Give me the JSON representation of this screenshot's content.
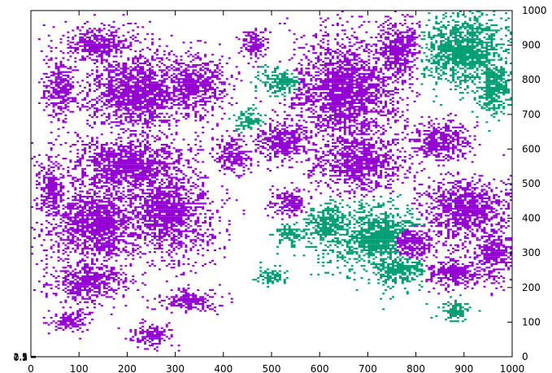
{
  "chart_data": {
    "type": "heatmap",
    "title": "",
    "xlabel": "",
    "ylabel": "",
    "xlim": [
      0,
      1000
    ],
    "ylim": [
      0,
      1000
    ],
    "x_ticks": [
      "0",
      "100",
      "200",
      "300",
      "400",
      "500",
      "600",
      "700",
      "800",
      "900",
      "1000"
    ],
    "y_ticks_right": [
      "0",
      "100",
      "200",
      "300",
      "400",
      "500",
      "600",
      "700",
      "800",
      "900",
      "1000"
    ],
    "y_ticks_left_overlapping": [
      "0.5",
      "1",
      "1.5",
      "2",
      "2.5"
    ],
    "grid": false,
    "legend": "none",
    "classes": [
      {
        "id": 1,
        "color": "#9400d3"
      },
      {
        "id": 2,
        "color": "#009e73"
      }
    ],
    "clusters": [
      {
        "class": 1,
        "cx": 60,
        "cy": 780,
        "rx": 30,
        "ry": 90
      },
      {
        "class": 1,
        "cx": 140,
        "cy": 900,
        "rx": 70,
        "ry": 50
      },
      {
        "class": 1,
        "cx": 220,
        "cy": 760,
        "rx": 110,
        "ry": 110
      },
      {
        "class": 1,
        "cx": 330,
        "cy": 780,
        "rx": 70,
        "ry": 90
      },
      {
        "class": 1,
        "cx": 200,
        "cy": 550,
        "rx": 120,
        "ry": 90
      },
      {
        "class": 1,
        "cx": 140,
        "cy": 380,
        "rx": 100,
        "ry": 120
      },
      {
        "class": 1,
        "cx": 280,
        "cy": 420,
        "rx": 90,
        "ry": 130
      },
      {
        "class": 1,
        "cx": 40,
        "cy": 480,
        "rx": 30,
        "ry": 100
      },
      {
        "class": 1,
        "cx": 120,
        "cy": 220,
        "rx": 80,
        "ry": 60
      },
      {
        "class": 1,
        "cx": 420,
        "cy": 580,
        "rx": 40,
        "ry": 50
      },
      {
        "class": 1,
        "cx": 460,
        "cy": 900,
        "rx": 30,
        "ry": 40
      },
      {
        "class": 1,
        "cx": 520,
        "cy": 620,
        "rx": 60,
        "ry": 60
      },
      {
        "class": 1,
        "cx": 650,
        "cy": 760,
        "rx": 110,
        "ry": 150
      },
      {
        "class": 1,
        "cx": 680,
        "cy": 560,
        "rx": 90,
        "ry": 80
      },
      {
        "class": 1,
        "cx": 760,
        "cy": 880,
        "rx": 50,
        "ry": 90
      },
      {
        "class": 1,
        "cx": 850,
        "cy": 620,
        "rx": 60,
        "ry": 60
      },
      {
        "class": 1,
        "cx": 900,
        "cy": 420,
        "rx": 90,
        "ry": 90
      },
      {
        "class": 1,
        "cx": 960,
        "cy": 300,
        "rx": 40,
        "ry": 80
      },
      {
        "class": 1,
        "cx": 780,
        "cy": 330,
        "rx": 70,
        "ry": 60
      },
      {
        "class": 1,
        "cx": 540,
        "cy": 440,
        "rx": 40,
        "ry": 40
      },
      {
        "class": 1,
        "cx": 880,
        "cy": 240,
        "rx": 70,
        "ry": 40
      },
      {
        "class": 1,
        "cx": 330,
        "cy": 160,
        "rx": 60,
        "ry": 30
      },
      {
        "class": 1,
        "cx": 80,
        "cy": 100,
        "rx": 40,
        "ry": 30
      },
      {
        "class": 1,
        "cx": 250,
        "cy": 60,
        "rx": 40,
        "ry": 30
      },
      {
        "class": 2,
        "cx": 900,
        "cy": 880,
        "rx": 90,
        "ry": 100
      },
      {
        "class": 2,
        "cx": 960,
        "cy": 780,
        "rx": 40,
        "ry": 80
      },
      {
        "class": 2,
        "cx": 720,
        "cy": 340,
        "rx": 110,
        "ry": 90
      },
      {
        "class": 2,
        "cx": 620,
        "cy": 380,
        "rx": 60,
        "ry": 60
      },
      {
        "class": 2,
        "cx": 760,
        "cy": 250,
        "rx": 60,
        "ry": 50
      },
      {
        "class": 2,
        "cx": 450,
        "cy": 680,
        "rx": 30,
        "ry": 30
      },
      {
        "class": 2,
        "cx": 520,
        "cy": 790,
        "rx": 40,
        "ry": 40
      },
      {
        "class": 2,
        "cx": 540,
        "cy": 350,
        "rx": 30,
        "ry": 30
      },
      {
        "class": 2,
        "cx": 880,
        "cy": 130,
        "rx": 30,
        "ry": 30
      },
      {
        "class": 2,
        "cx": 500,
        "cy": 230,
        "rx": 30,
        "ry": 20
      }
    ]
  }
}
